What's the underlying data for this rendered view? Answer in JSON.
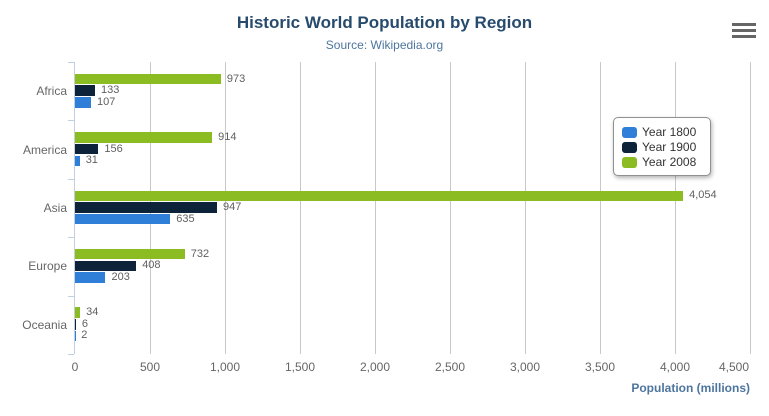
{
  "export_menu": {
    "icon": "hamburger-menu"
  },
  "palette": {
    "title": "#274b6d",
    "subtitle": "#4d759e",
    "axis_title": "#4d759e",
    "axis_line": "#c0d0e0",
    "gridline": "#c8c8c8",
    "tick_labels": "#666666",
    "data_labels": "#606060",
    "legend_text": "#333333",
    "menu_icon": "#666666"
  },
  "chart_data": {
    "type": "bar",
    "orientation": "horizontal",
    "title": "Historic World Population by Region",
    "subtitle": "Source: Wikipedia.org",
    "categories": [
      "Africa",
      "America",
      "Asia",
      "Europe",
      "Oceania"
    ],
    "series": [
      {
        "name": "Year 1800",
        "color": "#2f7ed8",
        "values": [
          107,
          31,
          635,
          203,
          2
        ]
      },
      {
        "name": "Year 1900",
        "color": "#0d233a",
        "values": [
          133,
          156,
          947,
          408,
          6
        ]
      },
      {
        "name": "Year 2008",
        "color": "#8bbc21",
        "values": [
          973,
          914,
          4054,
          732,
          34
        ]
      }
    ],
    "bar_order_top_to_bottom": [
      "Year 2008",
      "Year 1900",
      "Year 1800"
    ],
    "xlabel": "Population (millions)",
    "xlim": [
      0,
      4500
    ],
    "xticks": [
      0,
      500,
      1000,
      1500,
      2000,
      2500,
      3000,
      3500,
      4000,
      4500
    ],
    "grid": true,
    "legend_position": "right-inside",
    "data_labels_visible": true
  }
}
